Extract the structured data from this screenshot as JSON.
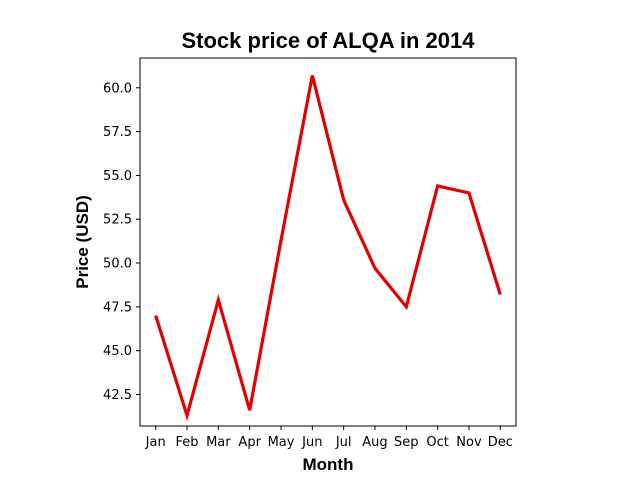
{
  "chart_data": {
    "type": "line",
    "title": "Stock price of ALQA in 2014",
    "xlabel": "Month",
    "ylabel": "Price (USD)",
    "categories": [
      "Jan",
      "Feb",
      "Mar",
      "Apr",
      "May",
      "Jun",
      "Jul",
      "Aug",
      "Sep",
      "Oct",
      "Nov",
      "Dec"
    ],
    "series": [
      {
        "values": [
          47.0,
          41.3,
          47.9,
          41.6,
          51.3,
          60.7,
          53.6,
          49.7,
          47.5,
          54.4,
          54.0,
          48.2
        ],
        "color": "#e50000"
      }
    ],
    "ylim": [
      40.7,
      61.7
    ],
    "yticks": [
      42.5,
      45.0,
      47.5,
      50.0,
      52.5,
      55.0,
      57.5,
      60.0
    ],
    "ytick_labels": [
      "42.5",
      "45.0",
      "47.5",
      "50.0",
      "52.5",
      "55.0",
      "57.5",
      "60.0"
    ],
    "grid": false,
    "legend": "none"
  }
}
